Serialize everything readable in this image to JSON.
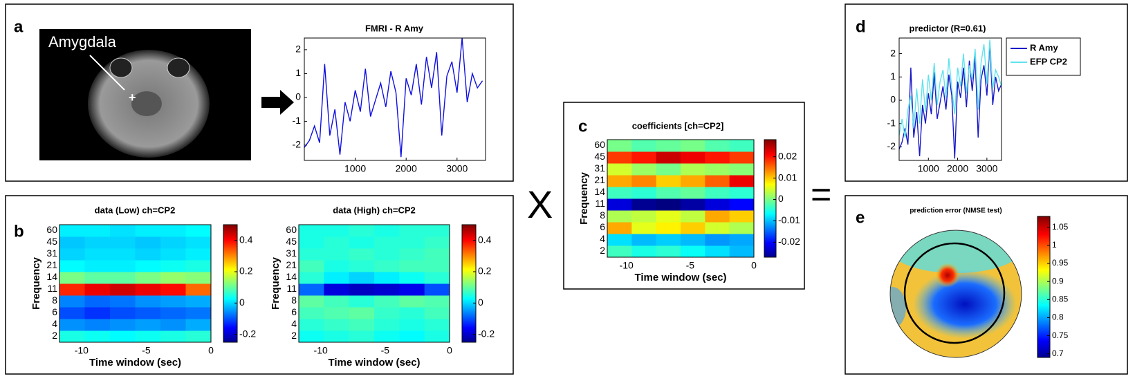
{
  "figure": {
    "panel_labels": [
      "a",
      "b",
      "c",
      "d",
      "e"
    ],
    "operators": [
      "X",
      "="
    ],
    "image_label": "Amygdala"
  },
  "chart_data": [
    {
      "type": "line",
      "title": "FMRI - R Amy",
      "xlim": [
        0,
        3560
      ],
      "xticks": [
        1000,
        2000,
        3000
      ],
      "ylim": [
        -2.64,
        2.49
      ],
      "yticks": [
        -2,
        -1,
        0,
        1,
        2
      ],
      "x": [
        0,
        100,
        200,
        300,
        400,
        500,
        600,
        700,
        800,
        900,
        1000,
        1100,
        1200,
        1300,
        1400,
        1500,
        1600,
        1700,
        1800,
        1900,
        2000,
        2100,
        2200,
        2300,
        2400,
        2500,
        2600,
        2700,
        2800,
        2900,
        3000,
        3100,
        3200,
        3300,
        3400,
        3500
      ],
      "series": [
        {
          "color": "#1010e0",
          "values": [
            -2.1,
            -1.8,
            -1.2,
            -1.9,
            1.4,
            -1.6,
            -0.5,
            -2.4,
            -0.2,
            -1.0,
            0.3,
            -0.6,
            1.2,
            -0.8,
            -0.1,
            0.6,
            -0.4,
            1.1,
            0.2,
            -2.5,
            0.8,
            0.1,
            1.4,
            -0.3,
            1.7,
            0.4,
            1.9,
            -1.6,
            0.9,
            1.5,
            0.2,
            2.5,
            -0.2,
            1.0,
            0.4,
            0.7
          ]
        }
      ]
    },
    {
      "type": "heatmap",
      "title": "data (Low) ch=CP2",
      "xlabel": "Time window (sec)",
      "ylabel": "Frequency",
      "xlim": [
        -11.7,
        0
      ],
      "xticks": [
        -10,
        -5,
        0
      ],
      "categories": [
        "2",
        "4",
        "6",
        "8",
        "11",
        "14",
        "21",
        "31",
        "45",
        "60"
      ],
      "cblim": [
        -0.25,
        0.5
      ],
      "cbticks": [
        -0.2,
        0,
        0.2,
        0.4
      ],
      "values": [
        [
          0.05,
          0.04,
          0.03,
          0.04,
          0.05,
          0.06
        ],
        [
          -0.05,
          -0.06,
          -0.05,
          -0.04,
          -0.05,
          -0.03
        ],
        [
          -0.1,
          -0.12,
          -0.1,
          -0.09,
          -0.08,
          -0.07
        ],
        [
          -0.06,
          -0.08,
          -0.07,
          -0.05,
          -0.04,
          -0.03
        ],
        [
          0.38,
          0.42,
          0.44,
          0.42,
          0.4,
          0.33
        ],
        [
          0.12,
          0.1,
          0.1,
          0.12,
          0.14,
          0.13
        ],
        [
          0.03,
          0.02,
          0.02,
          0.03,
          0.04,
          0.05
        ],
        [
          0,
          0.01,
          0.01,
          0,
          0.01,
          0.02
        ],
        [
          -0.01,
          0,
          0,
          -0.01,
          0,
          0.01
        ],
        [
          0.02,
          0.02,
          0.01,
          0.02,
          0.02,
          0.03
        ]
      ]
    },
    {
      "type": "heatmap",
      "title": "data (High) ch=CP2",
      "xlabel": "Time window (sec)",
      "ylabel": "Frequency",
      "xlim": [
        -11.7,
        0
      ],
      "xticks": [
        -10,
        -5,
        0
      ],
      "categories": [
        "2",
        "4",
        "6",
        "8",
        "11",
        "14",
        "21",
        "31",
        "45",
        "60"
      ],
      "cblim": [
        -0.25,
        0.5
      ],
      "cbticks": [
        -0.2,
        0,
        0.2,
        0.4
      ],
      "values": [
        [
          0.04,
          0.05,
          0.06,
          0.04,
          0.03,
          0.05
        ],
        [
          0.06,
          0.07,
          0.08,
          0.06,
          0.05,
          0.06
        ],
        [
          0.08,
          0.09,
          0.1,
          0.07,
          0.06,
          0.08
        ],
        [
          0.1,
          0.08,
          0.06,
          0.08,
          0.1,
          0.09
        ],
        [
          -0.08,
          -0.18,
          -0.2,
          -0.19,
          -0.17,
          -0.1
        ],
        [
          0.06,
          0.02,
          0,
          0.02,
          0.04,
          0.06
        ],
        [
          0.08,
          0.05,
          0.06,
          0.07,
          0.08,
          0.08
        ],
        [
          0.06,
          0.06,
          0.07,
          0.06,
          0.07,
          0.08
        ],
        [
          0.05,
          0.06,
          0.05,
          0.06,
          0.06,
          0.07
        ],
        [
          0.05,
          0.05,
          0.06,
          0.05,
          0.06,
          0.06
        ]
      ]
    },
    {
      "type": "heatmap",
      "title": "coefficients  [ch=CP2]",
      "xlabel": "Time window (sec)",
      "ylabel": "Frequency",
      "xlim": [
        -11.5,
        0
      ],
      "xticks": [
        -10,
        -5,
        0
      ],
      "categories": [
        "2",
        "4",
        "6",
        "8",
        "11",
        "14",
        "21",
        "31",
        "45",
        "60"
      ],
      "cblim": [
        -0.027,
        0.028
      ],
      "cbticks": [
        -0.02,
        -0.01,
        0,
        0.01,
        0.02
      ],
      "values": [
        [
          -0.003,
          -0.005,
          -0.004,
          -0.006,
          -0.008,
          -0.01
        ],
        [
          -0.008,
          -0.01,
          -0.009,
          -0.01,
          -0.012,
          -0.011
        ],
        [
          0.012,
          0.006,
          0.008,
          0.01,
          0.005,
          0.003
        ],
        [
          0.003,
          0.004,
          0.006,
          0.004,
          0.012,
          0.01
        ],
        [
          -0.022,
          -0.026,
          -0.027,
          -0.025,
          -0.022,
          -0.02
        ],
        [
          -0.003,
          -0.004,
          -0.002,
          -0.001,
          -0.003,
          -0.004
        ],
        [
          0.012,
          0.014,
          0.01,
          0.012,
          0.016,
          0.022
        ],
        [
          0.005,
          0.002,
          0,
          0.003,
          0.002,
          0.001
        ],
        [
          0.018,
          0.02,
          0.024,
          0.022,
          0.02,
          0.018
        ],
        [
          0,
          -0.002,
          -0.001,
          0,
          -0.002,
          -0.003
        ]
      ]
    },
    {
      "type": "line",
      "title": "predictor (R=0.61)",
      "xlim": [
        0,
        3500
      ],
      "xticks": [
        1000,
        2000,
        3000
      ],
      "ylim": [
        -2.58,
        2.67
      ],
      "yticks": [
        -2,
        -1,
        0,
        1,
        2
      ],
      "legend": "outside-right",
      "x": [
        0,
        100,
        200,
        300,
        400,
        500,
        600,
        700,
        800,
        900,
        1000,
        1100,
        1200,
        1300,
        1400,
        1500,
        1600,
        1700,
        1800,
        1900,
        2000,
        2100,
        2200,
        2300,
        2400,
        2500,
        2600,
        2700,
        2800,
        2900,
        3000,
        3100,
        3200,
        3300,
        3400,
        3500
      ],
      "series": [
        {
          "name": "R Amy",
          "color": "#1818c8",
          "values": [
            -2.1,
            -1.8,
            -1.2,
            -1.9,
            1.4,
            -1.6,
            -0.5,
            -2.4,
            -0.2,
            -1.0,
            0.3,
            -0.6,
            1.2,
            -0.8,
            -0.1,
            0.6,
            -0.4,
            1.1,
            0.2,
            -2.5,
            0.8,
            0.1,
            1.4,
            -0.3,
            1.7,
            0.4,
            1.9,
            -1.6,
            0.9,
            1.5,
            0.2,
            2.5,
            -0.2,
            1.0,
            0.4,
            0.7
          ]
        },
        {
          "name": "EFP CP2",
          "color": "#5ee3ee",
          "values": [
            -1.5,
            -0.8,
            -1.6,
            -0.4,
            0.2,
            -1.2,
            0.5,
            -1.0,
            0.9,
            -0.5,
            1.1,
            0,
            1.6,
            -0.2,
            0.8,
            1.3,
            0.1,
            1.8,
            0.5,
            -0.6,
            1.4,
            0.6,
            2.0,
            0.3,
            1.5,
            0.9,
            2.2,
            -0.4,
            1.6,
            2.4,
            0.7,
            2.6,
            0.5,
            1.3,
            1.0,
            0.6
          ]
        }
      ]
    },
    {
      "type": "topomap",
      "title": "prediction error (NMSE test)",
      "cblim": [
        0.69,
        1.08
      ],
      "cbticks": [
        0.7,
        0.75,
        0.8,
        0.85,
        0.9,
        0.95,
        1,
        1.05
      ]
    }
  ]
}
